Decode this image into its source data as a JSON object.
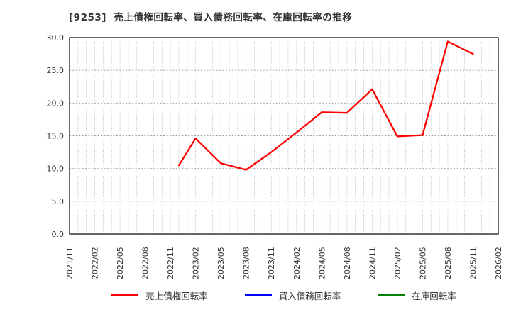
{
  "chart_data": {
    "type": "line",
    "title": "[9253]  売上債権回転率、買入債務回転率、在庫回転率の推移",
    "xlabel": "",
    "ylabel": "",
    "ylim": [
      0,
      30
    ],
    "y_ticks": [
      0,
      5,
      10,
      15,
      20,
      25,
      30
    ],
    "y_tick_format": "one-decimal",
    "x_tick_labels": [
      "2021/11",
      "2022/02",
      "2022/05",
      "2022/08",
      "2022/11",
      "2023/02",
      "2023/05",
      "2023/08",
      "2023/11",
      "2024/02",
      "2024/05",
      "2024/08",
      "2024/11",
      "2025/02",
      "2025/05",
      "2025/08",
      "2025/11",
      "2026/02"
    ],
    "grid": {
      "horizontal": "dotted",
      "vertical": "dotted-monthly",
      "frame": true
    },
    "legend_position": "bottom-center",
    "frame_color": "#262626",
    "grid_color": "#aaaaaa",
    "text_color": "#333333",
    "series": [
      {
        "name": "売上債権回転率",
        "color": "#ff0000",
        "points": [
          {
            "x": "2022/12",
            "y": 10.5
          },
          {
            "x": "2023/02",
            "y": 14.6
          },
          {
            "x": "2023/05",
            "y": 10.8
          },
          {
            "x": "2023/08",
            "y": 9.8
          },
          {
            "x": "2023/11",
            "y": 12.5
          },
          {
            "x": "2024/02",
            "y": 15.5
          },
          {
            "x": "2024/05",
            "y": 18.6
          },
          {
            "x": "2024/08",
            "y": 18.5
          },
          {
            "x": "2024/11",
            "y": 22.1
          },
          {
            "x": "2025/02",
            "y": 14.9
          },
          {
            "x": "2025/05",
            "y": 15.1
          },
          {
            "x": "2025/08",
            "y": 29.4
          },
          {
            "x": "2025/11",
            "y": 27.5
          }
        ]
      },
      {
        "name": "買入債務回転率",
        "color": "#0000ff",
        "points": []
      },
      {
        "name": "在庫回転率",
        "color": "#008000",
        "points": []
      }
    ]
  }
}
